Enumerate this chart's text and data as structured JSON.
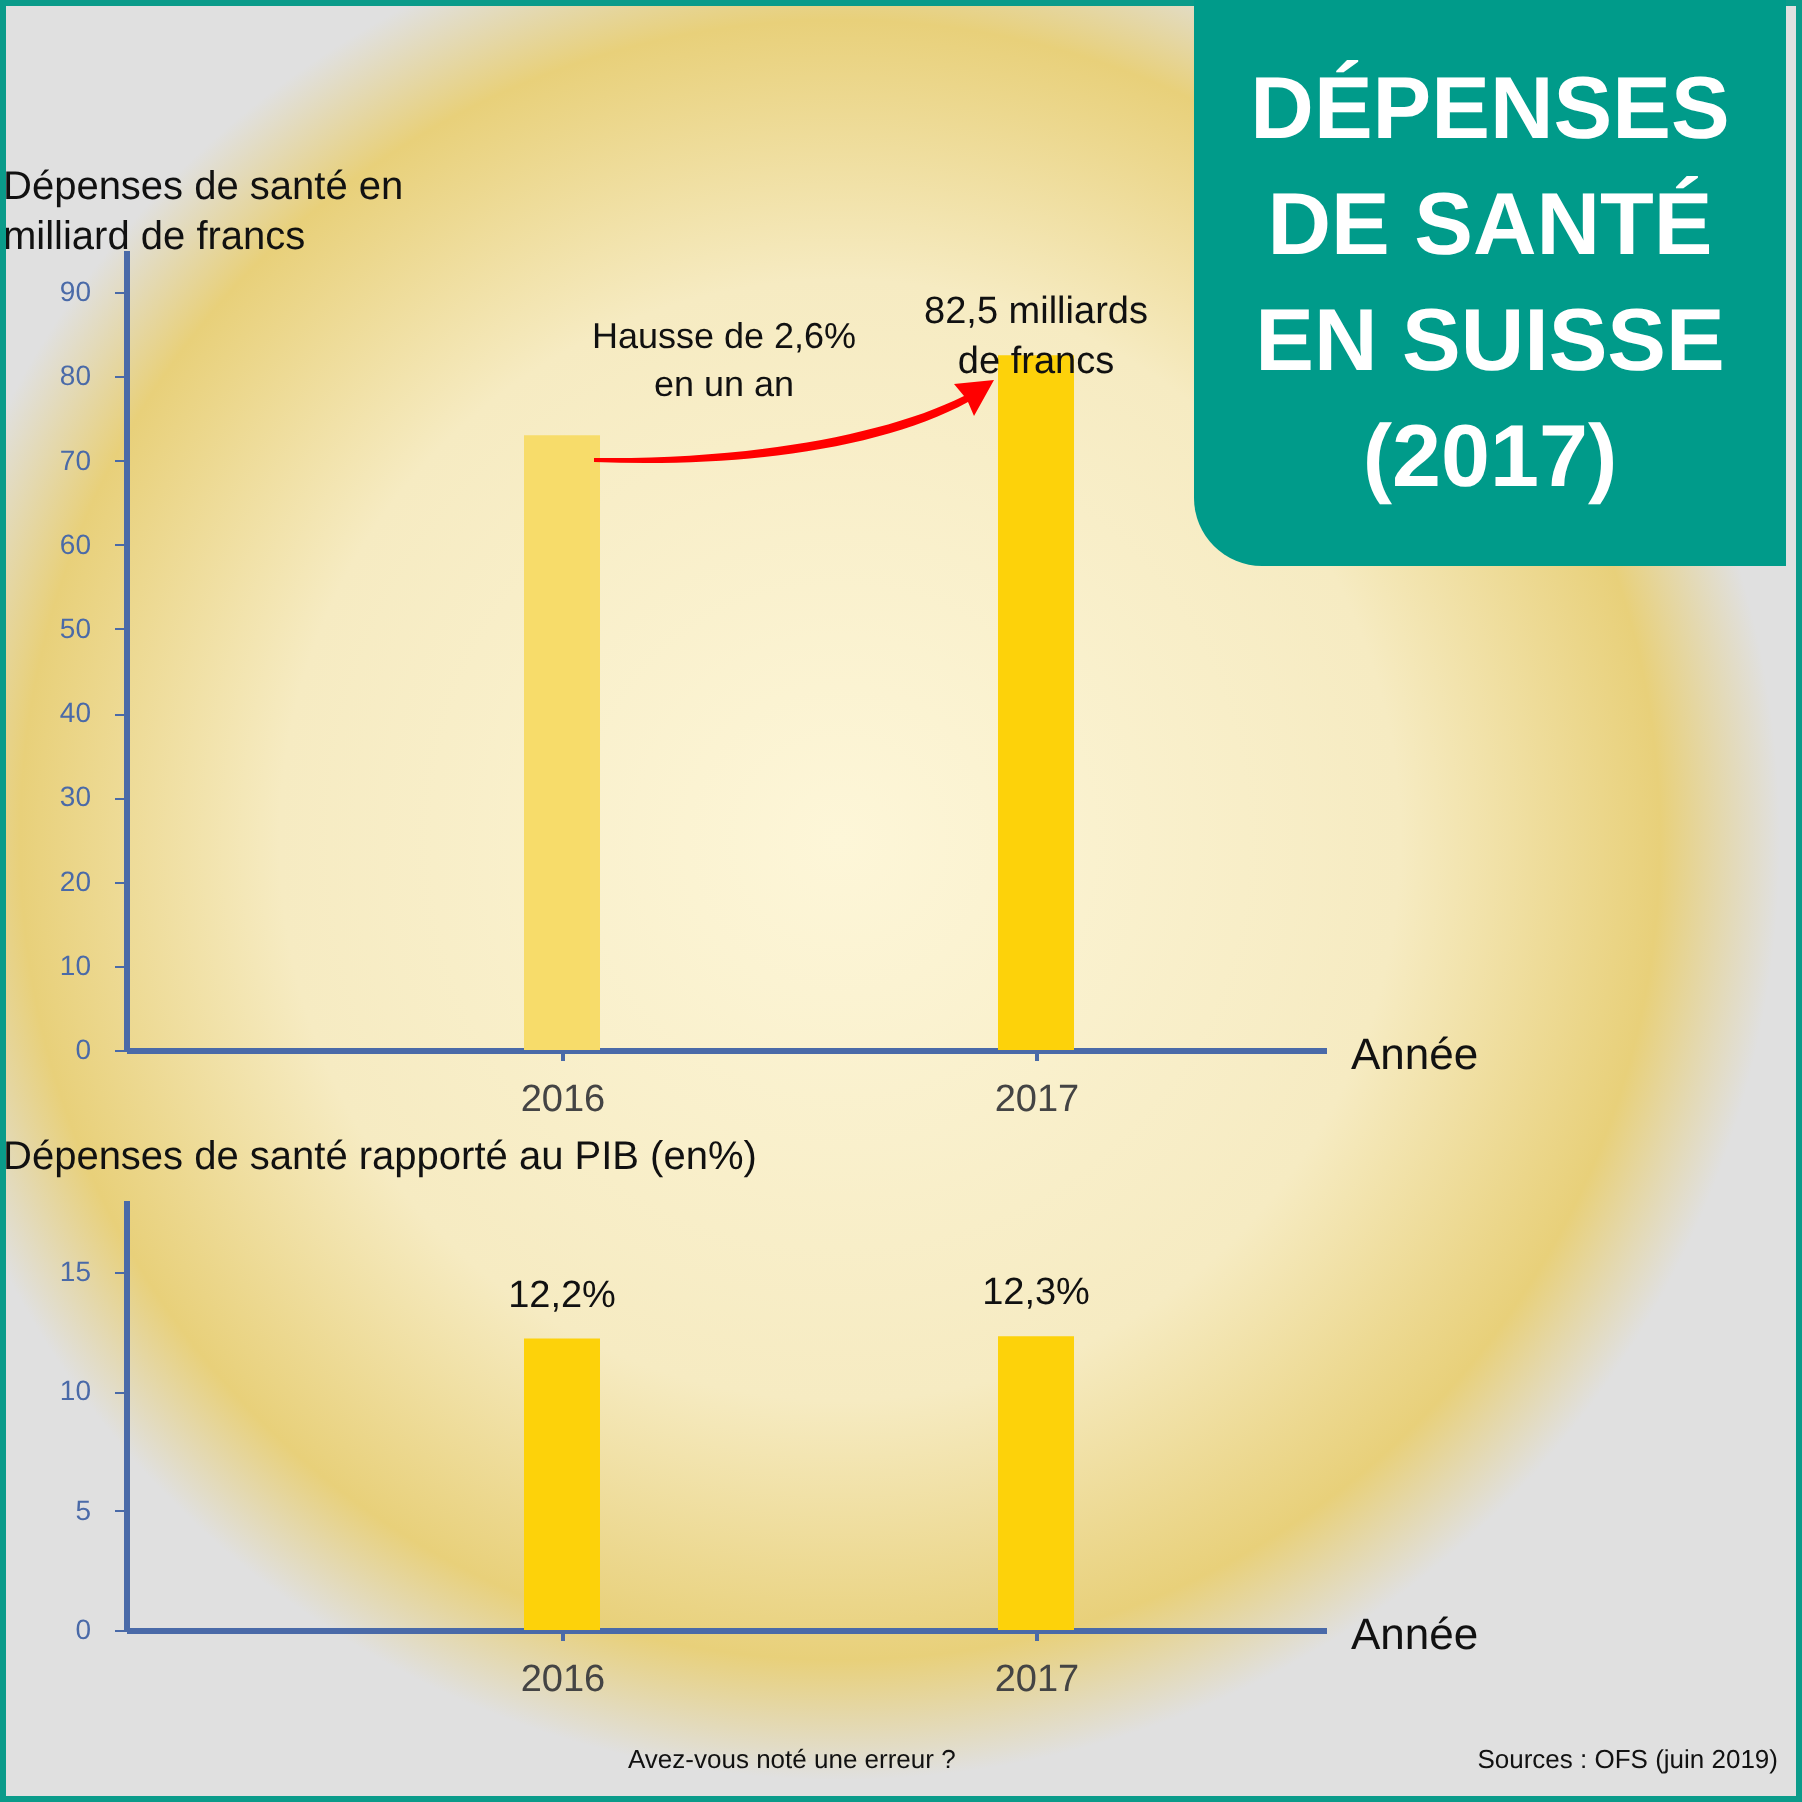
{
  "chart_data": [
    {
      "type": "bar",
      "title": "DÉPENSES DE SANTÉ EN SUISSE (2017)",
      "ylabel": "Dépenses de santé en milliard de francs",
      "xlabel": "Année",
      "categories": [
        "2016",
        "2017"
      ],
      "values": [
        73,
        82.5
      ],
      "colors": [
        "#f7dc6a",
        "#fdd20a"
      ],
      "ylim": [
        0,
        95
      ],
      "yticks": [
        0,
        10,
        20,
        30,
        40,
        50,
        60,
        70,
        80,
        90
      ],
      "value_labels": [
        null,
        "82,5 milliards de francs"
      ],
      "annotations": [
        "Hausse de 2,6% en un an"
      ]
    },
    {
      "type": "bar",
      "ylabel": "Dépenses de santé rapporté au PIB (en%)",
      "xlabel": "Année",
      "categories": [
        "2016",
        "2017"
      ],
      "values": [
        12.2,
        12.3
      ],
      "colors": [
        "#fdd20a",
        "#fdd20a"
      ],
      "ylim": [
        0,
        18
      ],
      "yticks": [
        0,
        5,
        10,
        15
      ],
      "value_labels": [
        "12,2%",
        "12,3%"
      ],
      "annotations": [
        "Avez-vous noté une erreur ?",
        "Sources : OFS (juin 2019)"
      ]
    }
  ]
}
